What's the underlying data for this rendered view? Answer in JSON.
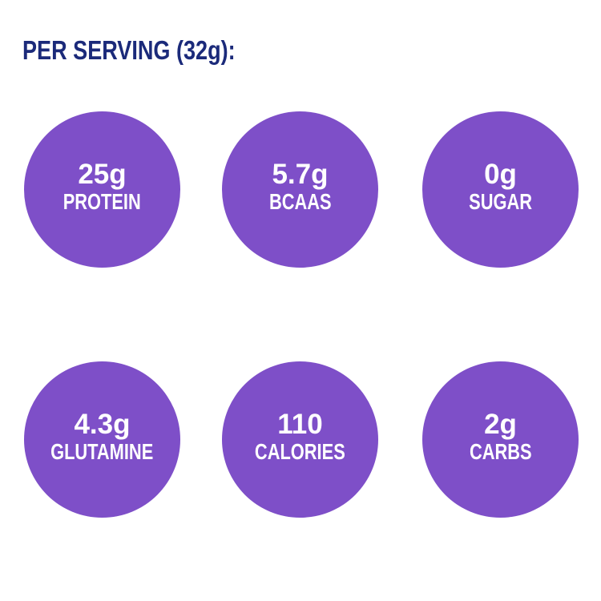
{
  "heading": "PER SERVING (32g):",
  "colors": {
    "heading": "#1b2a7a",
    "circle_fill": "#7e4fc8",
    "circle_text": "#ffffff"
  },
  "stats": [
    {
      "amount": "25g",
      "label": "PROTEIN"
    },
    {
      "amount": "5.7g",
      "label": "BCAAS"
    },
    {
      "amount": "0g",
      "label": "SUGAR"
    },
    {
      "amount": "4.3g",
      "label": "GLUTAMINE"
    },
    {
      "amount": "110",
      "label": "CALORIES"
    },
    {
      "amount": "2g",
      "label": "CARBS"
    }
  ]
}
